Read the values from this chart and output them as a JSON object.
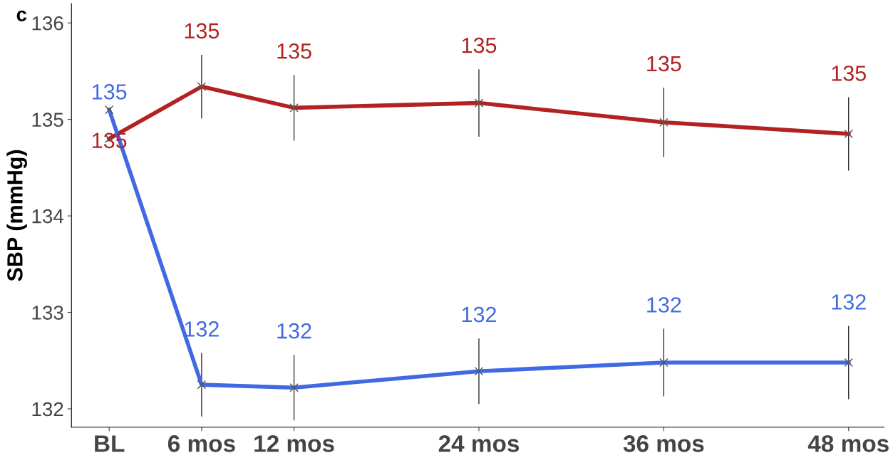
{
  "chart_data": {
    "type": "line",
    "ylabel": "SBP (mmHg)",
    "annotations": [
      "c"
    ],
    "x": [
      0,
      6,
      12,
      24,
      36,
      48
    ],
    "xlim": [
      -2.45,
      50.3
    ],
    "ylim": [
      131.81,
      136.2
    ],
    "xticks": [
      {
        "value": 0,
        "label": "BL"
      },
      {
        "value": 6,
        "label": "6 mos"
      },
      {
        "value": 12,
        "label": "12 mos"
      },
      {
        "value": 24,
        "label": "24 mos"
      },
      {
        "value": 36,
        "label": "36 mos"
      },
      {
        "value": 48,
        "label": "48 mos"
      }
    ],
    "yticks": [
      132,
      133,
      134,
      135,
      136
    ],
    "marker": "cross",
    "line_style": "solid",
    "grid": false,
    "legend": false,
    "series": [
      {
        "color": "#b22222",
        "values": [
          134.8,
          135.34,
          135.12,
          135.17,
          134.97,
          134.85
        ],
        "errors": [
          null,
          0.33,
          0.34,
          0.35,
          0.36,
          0.38
        ],
        "value_labels": [
          "135",
          "135",
          "135",
          "135",
          "135",
          "135"
        ]
      },
      {
        "color": "#4169e1",
        "values": [
          135.1,
          132.25,
          132.22,
          132.39,
          132.48,
          132.48
        ],
        "errors": [
          null,
          0.33,
          0.34,
          0.34,
          0.35,
          0.38
        ],
        "value_labels": [
          "135",
          "132",
          "132",
          "132",
          "132",
          "132"
        ]
      }
    ]
  }
}
